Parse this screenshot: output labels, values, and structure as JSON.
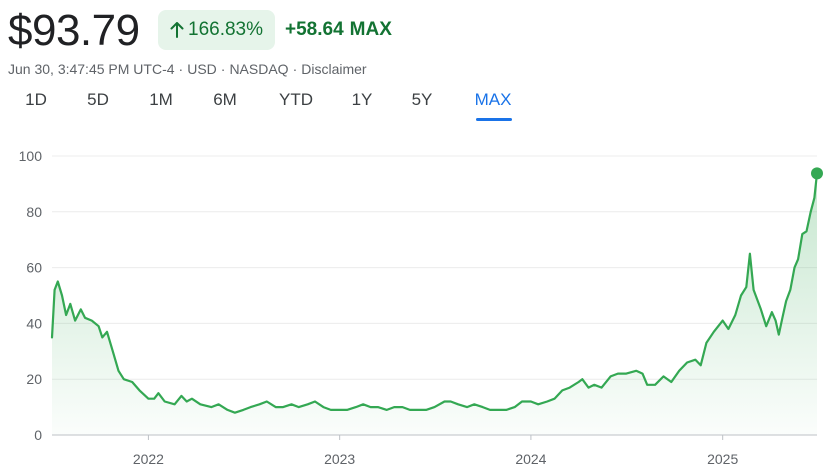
{
  "quote": {
    "price": "$93.79",
    "pct_change": "166.83%",
    "abs_change": "+58.64",
    "range_label": "MAX"
  },
  "meta": {
    "timestamp": "Jun 30, 3:47:45 PM UTC-4",
    "currency": "USD",
    "exchange": "NASDAQ",
    "disclaimer": "Disclaimer"
  },
  "tabs": [
    {
      "label": "1D"
    },
    {
      "label": "5D"
    },
    {
      "label": "1M"
    },
    {
      "label": "6M"
    },
    {
      "label": "YTD"
    },
    {
      "label": "1Y"
    },
    {
      "label": "5Y"
    },
    {
      "label": "MAX",
      "active": true
    }
  ],
  "colors": {
    "line": "#34a853",
    "positive": "#137333",
    "positive_bg": "#e6f4ea",
    "active_tab": "#1a73e8"
  },
  "icons": {
    "change_arrow": "arrow-up-icon"
  },
  "chart_data": {
    "type": "area",
    "title": "",
    "xlabel": "",
    "ylabel": "",
    "ylim": [
      0,
      100
    ],
    "y_ticks": [
      0,
      20,
      40,
      60,
      80,
      100
    ],
    "x_ticks": [
      "2022",
      "2023",
      "2024",
      "2025"
    ],
    "xlim": [
      "2021-07-01",
      "2025-06-30"
    ],
    "grid": true,
    "legend": "none",
    "series": [
      {
        "values": [
          [
            "2021-07-01",
            35
          ],
          [
            "2021-07-06",
            52
          ],
          [
            "2021-07-12",
            55
          ],
          [
            "2021-07-20",
            50
          ],
          [
            "2021-07-28",
            43
          ],
          [
            "2021-08-05",
            47
          ],
          [
            "2021-08-14",
            41
          ],
          [
            "2021-08-25",
            45
          ],
          [
            "2021-09-02",
            42
          ],
          [
            "2021-09-15",
            41
          ],
          [
            "2021-09-28",
            39
          ],
          [
            "2021-10-05",
            35
          ],
          [
            "2021-10-14",
            37
          ],
          [
            "2021-10-25",
            30
          ],
          [
            "2021-11-05",
            23
          ],
          [
            "2021-11-15",
            20
          ],
          [
            "2021-12-01",
            19
          ],
          [
            "2021-12-15",
            16
          ],
          [
            "2022-01-01",
            13
          ],
          [
            "2022-01-12",
            13
          ],
          [
            "2022-01-20",
            15
          ],
          [
            "2022-02-01",
            12
          ],
          [
            "2022-02-20",
            11
          ],
          [
            "2022-03-05",
            14
          ],
          [
            "2022-03-15",
            12
          ],
          [
            "2022-03-25",
            13
          ],
          [
            "2022-04-10",
            11
          ],
          [
            "2022-05-01",
            10
          ],
          [
            "2022-05-15",
            11
          ],
          [
            "2022-06-01",
            9
          ],
          [
            "2022-06-15",
            8
          ],
          [
            "2022-07-01",
            9
          ],
          [
            "2022-07-15",
            10
          ],
          [
            "2022-08-01",
            11
          ],
          [
            "2022-08-15",
            12
          ],
          [
            "2022-09-01",
            10
          ],
          [
            "2022-09-15",
            10
          ],
          [
            "2022-10-01",
            11
          ],
          [
            "2022-10-15",
            10
          ],
          [
            "2022-11-01",
            11
          ],
          [
            "2022-11-15",
            12
          ],
          [
            "2022-12-01",
            10
          ],
          [
            "2022-12-15",
            9
          ],
          [
            "2023-01-01",
            9
          ],
          [
            "2023-01-15",
            9
          ],
          [
            "2023-02-01",
            10
          ],
          [
            "2023-02-15",
            11
          ],
          [
            "2023-03-01",
            10
          ],
          [
            "2023-03-15",
            10
          ],
          [
            "2023-04-01",
            9
          ],
          [
            "2023-04-15",
            10
          ],
          [
            "2023-05-01",
            10
          ],
          [
            "2023-05-15",
            9
          ],
          [
            "2023-06-01",
            9
          ],
          [
            "2023-06-15",
            9
          ],
          [
            "2023-07-01",
            10
          ],
          [
            "2023-07-20",
            12
          ],
          [
            "2023-08-01",
            12
          ],
          [
            "2023-08-15",
            11
          ],
          [
            "2023-09-01",
            10
          ],
          [
            "2023-09-15",
            11
          ],
          [
            "2023-10-01",
            10
          ],
          [
            "2023-10-15",
            9
          ],
          [
            "2023-11-01",
            9
          ],
          [
            "2023-11-15",
            9
          ],
          [
            "2023-12-01",
            10
          ],
          [
            "2023-12-15",
            12
          ],
          [
            "2024-01-01",
            12
          ],
          [
            "2024-01-15",
            11
          ],
          [
            "2024-02-01",
            12
          ],
          [
            "2024-02-15",
            13
          ],
          [
            "2024-03-01",
            16
          ],
          [
            "2024-03-15",
            17
          ],
          [
            "2024-04-01",
            19
          ],
          [
            "2024-04-08",
            20
          ],
          [
            "2024-04-20",
            17
          ],
          [
            "2024-05-01",
            18
          ],
          [
            "2024-05-15",
            17
          ],
          [
            "2024-06-01",
            21
          ],
          [
            "2024-06-15",
            22
          ],
          [
            "2024-07-01",
            22
          ],
          [
            "2024-07-20",
            23
          ],
          [
            "2024-08-01",
            22
          ],
          [
            "2024-08-10",
            18
          ],
          [
            "2024-08-25",
            18
          ],
          [
            "2024-09-10",
            21
          ],
          [
            "2024-09-25",
            19
          ],
          [
            "2024-10-10",
            23
          ],
          [
            "2024-10-25",
            26
          ],
          [
            "2024-11-10",
            27
          ],
          [
            "2024-11-20",
            25
          ],
          [
            "2024-12-01",
            33
          ],
          [
            "2024-12-15",
            37
          ],
          [
            "2025-01-01",
            41
          ],
          [
            "2025-01-12",
            38
          ],
          [
            "2025-01-25",
            43
          ],
          [
            "2025-02-05",
            50
          ],
          [
            "2025-02-15",
            53
          ],
          [
            "2025-02-22",
            65
          ],
          [
            "2025-03-01",
            52
          ],
          [
            "2025-03-15",
            45
          ],
          [
            "2025-03-25",
            39
          ],
          [
            "2025-04-05",
            44
          ],
          [
            "2025-04-12",
            41
          ],
          [
            "2025-04-18",
            36
          ],
          [
            "2025-04-25",
            42
          ],
          [
            "2025-05-02",
            48
          ],
          [
            "2025-05-10",
            52
          ],
          [
            "2025-05-18",
            60
          ],
          [
            "2025-05-25",
            63
          ],
          [
            "2025-06-02",
            72
          ],
          [
            "2025-06-10",
            73
          ],
          [
            "2025-06-18",
            80
          ],
          [
            "2025-06-25",
            85
          ],
          [
            "2025-06-30",
            93.79
          ]
        ]
      }
    ]
  }
}
